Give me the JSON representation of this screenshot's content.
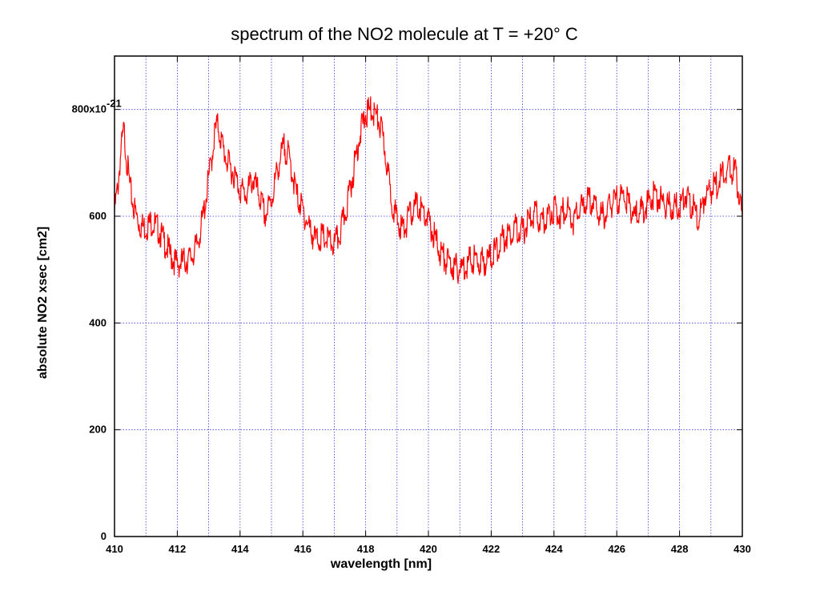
{
  "chart_data": {
    "type": "line",
    "title": "spectrum of the NO2 molecule at T = +20°  C",
    "xlabel": "wavelength [nm]",
    "ylabel": "absolute NO2 xsec [cm2]",
    "xlim": [
      410,
      430
    ],
    "ylim": [
      0,
      900
    ],
    "x_ticks": [
      410,
      412,
      414,
      416,
      418,
      420,
      422,
      424,
      426,
      428,
      430
    ],
    "x_tick_labels": [
      "410",
      "412",
      "414",
      "416",
      "418",
      "420",
      "422",
      "424",
      "426",
      "428",
      "430"
    ],
    "y_ticks": [
      0,
      200,
      400,
      600,
      800
    ],
    "y_tick_labels": [
      "0",
      "200",
      "400",
      "600",
      "800x10"
    ],
    "y_exponent_label": "-21",
    "x_grid_step": 1,
    "grid": true,
    "grid_color": "#3b3bd6",
    "line_color": "#ff0000",
    "series": [
      {
        "x": [
          410,
          410.1,
          410.2,
          410.3,
          410.4,
          410.5,
          410.6,
          410.7,
          410.8,
          410.9,
          411,
          411.2,
          411.4,
          411.6,
          411.8,
          412,
          412.2,
          412.4,
          412.6,
          412.8,
          413,
          413.1,
          413.2,
          413.3,
          413.4,
          413.5,
          413.6,
          413.8,
          414,
          414.2,
          414.4,
          414.6,
          414.8,
          415,
          415.2,
          415.4,
          415.5,
          415.6,
          415.8,
          416,
          416.2,
          416.4,
          416.6,
          416.8,
          417,
          417.2,
          417.4,
          417.6,
          417.8,
          418,
          418.2,
          418.4,
          418.5,
          418.6,
          418.8,
          419,
          419.2,
          419.4,
          419.6,
          419.8,
          420,
          420.2,
          420.4,
          420.6,
          420.8,
          421,
          421.2,
          421.4,
          421.6,
          421.8,
          422,
          422.2,
          422.4,
          422.6,
          422.8,
          423,
          423.2,
          423.4,
          423.6,
          423.8,
          424,
          424.2,
          424.4,
          424.6,
          424.8,
          425,
          425.2,
          425.4,
          425.6,
          425.8,
          426,
          426.2,
          426.4,
          426.6,
          426.8,
          427,
          427.2,
          427.4,
          427.6,
          427.8,
          428,
          428.2,
          428.4,
          428.6,
          428.8,
          429,
          429.2,
          429.4,
          429.6,
          429.8,
          430
        ],
        "y": [
          610,
          650,
          720,
          760,
          700,
          650,
          620,
          600,
          585,
          580,
          580,
          590,
          575,
          550,
          525,
          510,
          515,
          520,
          540,
          590,
          670,
          710,
          760,
          770,
          740,
          720,
          700,
          680,
          650,
          640,
          670,
          640,
          600,
          630,
          690,
          730,
          720,
          700,
          640,
          610,
          580,
          555,
          560,
          555,
          545,
          570,
          620,
          680,
          750,
          790,
          800,
          780,
          760,
          730,
          640,
          590,
          575,
          600,
          620,
          610,
          590,
          560,
          530,
          515,
          505,
          500,
          510,
          520,
          515,
          515,
          525,
          540,
          560,
          570,
          580,
          570,
          590,
          605,
          585,
          600,
          615,
          600,
          620,
          590,
          610,
          625,
          630,
          605,
          600,
          620,
          630,
          640,
          620,
          600,
          610,
          625,
          640,
          630,
          620,
          615,
          620,
          640,
          620,
          590,
          640,
          650,
          660,
          680,
          690,
          680,
          590
        ]
      }
    ]
  }
}
